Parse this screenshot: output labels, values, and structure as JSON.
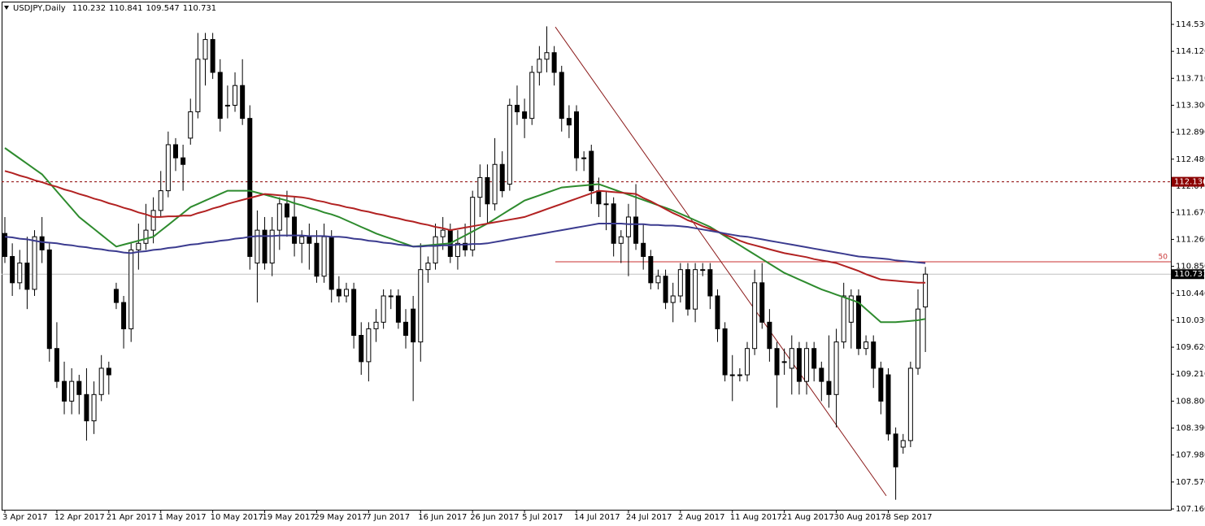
{
  "chart_data": {
    "type": "candlestick",
    "title": "USDJPY,Daily",
    "categories": [
      "3 Apr 2017",
      null,
      null,
      null,
      null,
      null,
      null,
      "12 Apr 2017",
      null,
      null,
      null,
      null,
      null,
      null,
      "21 Apr 2017",
      null,
      null,
      null,
      null,
      null,
      null,
      "1 May 2017",
      null,
      null,
      null,
      null,
      null,
      null,
      "10 May 2017",
      null,
      null,
      null,
      null,
      null,
      null,
      "19 May 2017",
      null,
      null,
      null,
      null,
      null,
      null,
      "29 May 2017",
      null,
      null,
      null,
      null,
      null,
      null,
      "7 Jun 2017",
      null,
      null,
      null,
      null,
      null,
      null,
      "16 Jun 2017",
      null,
      null,
      null,
      null,
      null,
      null,
      "26 Jun 2017",
      null,
      null,
      null,
      null,
      null,
      null,
      "5 Jul 2017",
      null,
      null,
      null,
      null,
      null,
      null,
      "14 Jul 2017",
      null,
      null,
      null,
      null,
      null,
      null,
      "24 Jul 2017",
      null,
      null,
      null,
      null,
      null,
      null,
      "2 Aug 2017",
      null,
      null,
      null,
      null,
      null,
      null,
      "11 Aug 2017",
      null,
      null,
      null,
      null,
      null,
      null,
      "21 Aug 2017",
      null,
      null,
      null,
      null,
      null,
      null,
      "30 Aug 2017",
      null,
      null,
      null,
      null,
      null,
      null,
      "8 Sep 2017",
      null,
      null,
      null,
      null,
      null
    ],
    "open": [
      111.35,
      111.0,
      110.6,
      110.9,
      110.5,
      111.3,
      111.1,
      109.6,
      109.1,
      108.8,
      109.1,
      108.9,
      108.5,
      108.9,
      109.3,
      110.5,
      110.3,
      109.9,
      111.1,
      111.2,
      111.4,
      111.7,
      112.0,
      112.7,
      112.5,
      112.8,
      113.2,
      114.0,
      114.3,
      113.8,
      113.3,
      113.3,
      113.6,
      113.1,
      110.9,
      111.4,
      110.9,
      111.4,
      111.8,
      111.6,
      111.2,
      111.3,
      111.2,
      110.7,
      111.3,
      110.5,
      110.4,
      110.5,
      109.8,
      109.4,
      109.9,
      110.0,
      110.4,
      110.4,
      110.0,
      110.2,
      109.7,
      110.8,
      110.9,
      111.3,
      111.4,
      111.0,
      111.2,
      111.1,
      111.9,
      112.2,
      111.8,
      112.4,
      112.1,
      113.3,
      113.2,
      113.1,
      113.8,
      114.0,
      114.1,
      113.8,
      113.1,
      113.2,
      112.5,
      112.6,
      112.0,
      111.8,
      111.8,
      111.2,
      111.3,
      111.6,
      111.2,
      111.0,
      110.6,
      110.7,
      110.3,
      110.4,
      110.8,
      110.2,
      110.8,
      110.8,
      110.4,
      109.9,
      109.2,
      109.2,
      109.2,
      109.6,
      110.6,
      110.0,
      109.6,
      109.4,
      109.3,
      109.6,
      109.1,
      109.6,
      109.3,
      109.1,
      108.9,
      109.7,
      110.0,
      110.4,
      109.6,
      109.7,
      109.3,
      109.2,
      108.3,
      108.1,
      108.2,
      109.3,
      110.232
    ],
    "high": [
      111.6,
      111.2,
      111.1,
      111.3,
      111.4,
      111.6,
      111.2,
      110.0,
      109.4,
      109.3,
      109.2,
      109.3,
      109.1,
      109.5,
      109.4,
      110.6,
      110.4,
      111.2,
      111.5,
      111.8,
      111.9,
      112.3,
      112.9,
      112.8,
      112.7,
      113.4,
      114.4,
      114.4,
      114.4,
      114.0,
      113.6,
      113.8,
      114.0,
      113.3,
      111.7,
      111.6,
      111.6,
      111.9,
      112.0,
      111.9,
      111.4,
      111.5,
      111.4,
      111.5,
      111.4,
      110.7,
      110.6,
      110.6,
      110.0,
      110.0,
      110.2,
      110.5,
      110.5,
      110.5,
      110.2,
      110.4,
      111.2,
      111.0,
      111.5,
      111.6,
      111.5,
      111.4,
      111.5,
      112.0,
      112.4,
      112.4,
      112.8,
      112.6,
      113.4,
      113.6,
      113.4,
      113.9,
      114.2,
      114.5,
      114.2,
      113.9,
      113.3,
      113.3,
      112.6,
      112.7,
      112.2,
      112.0,
      111.9,
      111.4,
      111.8,
      112.1,
      111.5,
      111.1,
      110.8,
      110.8,
      110.6,
      110.9,
      110.9,
      110.9,
      110.9,
      110.9,
      110.5,
      110.0,
      109.5,
      109.3,
      109.7,
      110.8,
      110.9,
      110.2,
      109.7,
      109.6,
      109.8,
      109.7,
      109.7,
      109.7,
      109.4,
      109.8,
      109.9,
      110.6,
      110.5,
      110.5,
      109.8,
      109.8,
      109.4,
      109.3,
      108.4,
      108.3,
      109.4,
      110.5,
      110.841
    ],
    "low": [
      110.9,
      110.4,
      110.5,
      110.2,
      110.4,
      110.9,
      109.4,
      109.0,
      108.6,
      108.6,
      108.6,
      108.2,
      108.3,
      108.8,
      108.9,
      110.2,
      109.6,
      109.7,
      110.8,
      111.1,
      111.2,
      111.6,
      111.9,
      112.3,
      112.0,
      112.7,
      113.1,
      113.6,
      113.7,
      112.9,
      113.1,
      113.2,
      113.0,
      110.8,
      110.3,
      110.8,
      110.7,
      111.1,
      111.3,
      111.0,
      110.9,
      110.8,
      110.6,
      110.6,
      110.3,
      110.3,
      110.3,
      109.6,
      109.2,
      109.1,
      109.7,
      109.9,
      110.2,
      109.9,
      109.6,
      108.8,
      109.4,
      110.6,
      110.8,
      111.1,
      110.9,
      110.8,
      111.0,
      111.0,
      111.6,
      111.5,
      111.7,
      111.9,
      112.0,
      113.0,
      112.8,
      113.0,
      113.6,
      113.8,
      113.6,
      112.9,
      112.8,
      112.3,
      112.3,
      111.8,
      111.6,
      111.4,
      111.0,
      110.9,
      110.7,
      111.1,
      110.8,
      110.5,
      110.5,
      110.2,
      110.0,
      110.3,
      110.1,
      110.0,
      110.7,
      110.2,
      109.7,
      109.1,
      108.8,
      109.1,
      109.1,
      109.5,
      109.9,
      109.4,
      108.7,
      109.2,
      108.9,
      108.9,
      108.9,
      109.1,
      108.8,
      108.7,
      108.4,
      109.6,
      109.6,
      109.5,
      109.5,
      109.0,
      108.6,
      108.2,
      107.3,
      108.0,
      108.1,
      109.2,
      109.547
    ],
    "close": [
      111.0,
      110.6,
      110.9,
      110.5,
      111.3,
      111.1,
      109.6,
      109.1,
      108.8,
      109.1,
      108.9,
      108.5,
      108.9,
      109.3,
      109.2,
      110.3,
      109.9,
      111.1,
      111.2,
      111.4,
      111.7,
      112.0,
      112.7,
      112.5,
      112.4,
      113.2,
      114.0,
      114.3,
      113.8,
      113.1,
      113.3,
      113.6,
      113.1,
      111.0,
      111.4,
      110.9,
      111.4,
      111.8,
      111.6,
      111.2,
      111.3,
      111.2,
      110.7,
      111.3,
      110.5,
      110.4,
      110.5,
      109.8,
      109.4,
      109.9,
      110.0,
      110.4,
      110.4,
      110.0,
      109.8,
      109.7,
      110.8,
      110.9,
      111.3,
      111.4,
      111.0,
      111.2,
      111.1,
      111.9,
      112.2,
      111.8,
      112.4,
      112.0,
      113.3,
      113.2,
      113.1,
      113.8,
      114.0,
      114.1,
      113.8,
      113.1,
      113.0,
      112.5,
      112.5,
      112.0,
      111.8,
      111.8,
      111.2,
      111.3,
      111.6,
      111.2,
      111.0,
      110.6,
      110.7,
      110.3,
      110.4,
      110.8,
      110.2,
      110.8,
      110.8,
      110.4,
      109.9,
      109.2,
      109.2,
      109.2,
      109.6,
      110.6,
      110.0,
      109.6,
      109.2,
      109.4,
      109.6,
      109.1,
      109.6,
      109.3,
      109.1,
      108.9,
      109.7,
      110.4,
      110.4,
      109.6,
      109.7,
      109.3,
      108.8,
      108.3,
      107.8,
      108.2,
      109.3,
      110.2,
      110.731
    ],
    "series": [
      {
        "color": "#2e8b2e",
        "values": [
          112.65,
          112.57,
          112.49,
          112.41,
          112.33,
          112.25,
          112.12,
          111.99,
          111.86,
          111.73,
          111.6,
          111.51,
          111.42,
          111.33,
          111.24,
          111.15,
          111.18,
          111.21,
          111.24,
          111.27,
          111.3,
          111.39,
          111.48,
          111.57,
          111.66,
          111.75,
          111.8,
          111.85,
          111.9,
          111.95,
          112.0,
          112.0,
          112.0,
          112.0,
          111.97,
          111.94,
          111.91,
          111.88,
          111.85,
          111.81,
          111.78,
          111.74,
          111.71,
          111.67,
          111.64,
          111.6,
          111.55,
          111.5,
          111.45,
          111.4,
          111.35,
          111.31,
          111.27,
          111.23,
          111.19,
          111.15,
          111.16,
          111.17,
          111.18,
          111.19,
          111.2,
          111.26,
          111.32,
          111.38,
          111.44,
          111.5,
          111.57,
          111.64,
          111.71,
          111.78,
          111.85,
          111.89,
          111.93,
          111.97,
          112.01,
          112.05,
          112.06,
          112.07,
          112.08,
          112.09,
          112.1,
          112.06,
          112.02,
          111.98,
          111.94,
          111.9,
          111.86,
          111.82,
          111.78,
          111.74,
          111.7,
          111.65,
          111.6,
          111.55,
          111.5,
          111.45,
          111.38,
          111.31,
          111.24,
          111.17,
          111.1,
          111.03,
          110.96,
          110.89,
          110.82,
          110.75,
          110.7,
          110.65,
          110.6,
          110.55,
          110.5,
          110.46,
          110.42,
          110.38,
          110.34,
          110.3,
          110.2,
          110.1,
          110.0,
          110.0,
          110.0,
          110.01,
          110.02,
          110.03,
          110.05
        ]
      },
      {
        "color": "#b22222",
        "values": [
          112.3,
          112.27,
          112.23,
          112.2,
          112.16,
          112.13,
          112.09,
          112.06,
          112.02,
          111.99,
          111.95,
          111.92,
          111.88,
          111.85,
          111.81,
          111.78,
          111.74,
          111.71,
          111.67,
          111.64,
          111.6,
          111.6,
          111.61,
          111.61,
          111.62,
          111.62,
          111.66,
          111.69,
          111.73,
          111.76,
          111.8,
          111.83,
          111.86,
          111.89,
          111.92,
          111.95,
          111.94,
          111.93,
          111.92,
          111.91,
          111.9,
          111.88,
          111.85,
          111.83,
          111.8,
          111.78,
          111.75,
          111.73,
          111.7,
          111.68,
          111.65,
          111.63,
          111.6,
          111.58,
          111.55,
          111.53,
          111.5,
          111.48,
          111.45,
          111.43,
          111.4,
          111.42,
          111.44,
          111.46,
          111.48,
          111.5,
          111.52,
          111.54,
          111.56,
          111.58,
          111.6,
          111.64,
          111.68,
          111.72,
          111.76,
          111.8,
          111.84,
          111.88,
          111.92,
          111.96,
          112.0,
          111.99,
          111.98,
          111.97,
          111.96,
          111.95,
          111.89,
          111.84,
          111.78,
          111.72,
          111.66,
          111.61,
          111.55,
          111.51,
          111.46,
          111.42,
          111.38,
          111.33,
          111.29,
          111.24,
          111.2,
          111.17,
          111.14,
          111.11,
          111.08,
          111.05,
          111.03,
          111.01,
          110.99,
          110.96,
          110.94,
          110.92,
          110.9,
          110.86,
          110.82,
          110.78,
          110.73,
          110.69,
          110.65,
          110.64,
          110.63,
          110.62,
          110.61,
          110.6,
          110.6
        ]
      },
      {
        "color": "#3b3b8f",
        "values": [
          111.3,
          111.29,
          111.27,
          111.26,
          111.24,
          111.22,
          111.21,
          111.2,
          111.18,
          111.17,
          111.15,
          111.14,
          111.12,
          111.11,
          111.09,
          111.08,
          111.06,
          111.05,
          111.07,
          111.08,
          111.1,
          111.11,
          111.13,
          111.14,
          111.16,
          111.18,
          111.19,
          111.21,
          111.22,
          111.24,
          111.25,
          111.27,
          111.28,
          111.3,
          111.31,
          111.31,
          111.31,
          111.32,
          111.32,
          111.32,
          111.32,
          111.31,
          111.31,
          111.31,
          111.3,
          111.3,
          111.29,
          111.27,
          111.26,
          111.24,
          111.23,
          111.21,
          111.2,
          111.18,
          111.17,
          111.15,
          111.15,
          111.16,
          111.16,
          111.17,
          111.17,
          111.18,
          111.18,
          111.19,
          111.19,
          111.2,
          111.22,
          111.24,
          111.26,
          111.28,
          111.3,
          111.32,
          111.34,
          111.36,
          111.38,
          111.4,
          111.42,
          111.44,
          111.46,
          111.48,
          111.5,
          111.5,
          111.5,
          111.5,
          111.49,
          111.49,
          111.49,
          111.48,
          111.48,
          111.47,
          111.47,
          111.46,
          111.45,
          111.43,
          111.41,
          111.39,
          111.37,
          111.35,
          111.33,
          111.31,
          111.3,
          111.28,
          111.26,
          111.24,
          111.22,
          111.2,
          111.18,
          111.16,
          111.14,
          111.12,
          111.1,
          111.08,
          111.06,
          111.04,
          111.02,
          111.0,
          110.99,
          110.98,
          110.97,
          110.96,
          110.94,
          110.93,
          110.92,
          110.91,
          110.9
        ]
      }
    ],
    "levels": [
      {
        "value": 112.136,
        "label": "112.136",
        "color": "#8b0000",
        "dashed": true
      },
      {
        "value": 110.92,
        "label": "50",
        "color": "#c83232",
        "dashed": false
      }
    ],
    "trendline": [
      114.49,
      107.36
    ],
    "ylim": [
      107.148,
      114.876
    ],
    "yticks": [
      {
        "value": 114.53,
        "label": "114.530"
      },
      {
        "value": 114.12,
        "label": "114.120"
      },
      {
        "value": 113.71,
        "label": "113.710"
      },
      {
        "value": 113.3,
        "label": "113.300"
      },
      {
        "value": 112.89,
        "label": "112.890"
      },
      {
        "value": 112.48,
        "label": "112.480"
      },
      {
        "value": 112.07,
        "label": "112.070"
      },
      {
        "value": 111.67,
        "label": "111.670"
      },
      {
        "value": 111.26,
        "label": "111.260"
      },
      {
        "value": 110.85,
        "label": "110.850"
      },
      {
        "value": 110.44,
        "label": "110.440"
      },
      {
        "value": 110.03,
        "label": "110.030"
      },
      {
        "value": 109.62,
        "label": "109.620"
      },
      {
        "value": 109.21,
        "label": "109.210"
      },
      {
        "value": 108.8,
        "label": "108.800"
      },
      {
        "value": 108.39,
        "label": "108.390"
      },
      {
        "value": 107.98,
        "label": "107.980"
      },
      {
        "value": 107.57,
        "label": "107.570"
      },
      {
        "value": 107.16,
        "label": "107.160"
      }
    ]
  }
}
